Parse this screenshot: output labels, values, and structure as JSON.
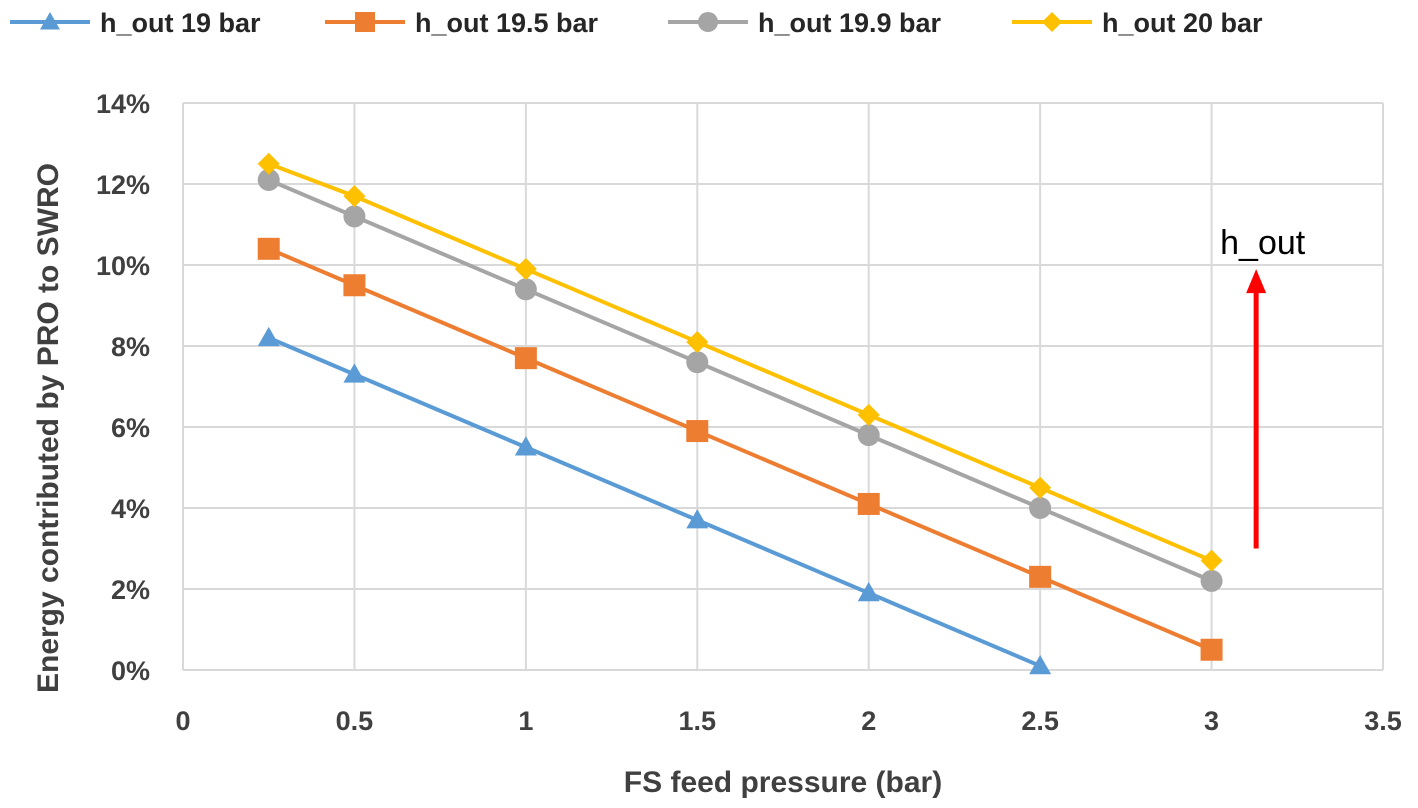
{
  "chart_data": {
    "type": "line",
    "title": "",
    "xlabel": "FS feed pressure (bar)",
    "ylabel": "Energy contributed by PRO to SWRO",
    "xlim": [
      0,
      3.5
    ],
    "ylim": [
      0,
      14
    ],
    "x_ticks": [
      "0",
      "0.5",
      "1",
      "1.5",
      "2",
      "2.5",
      "3",
      "3.5"
    ],
    "y_ticks": [
      "0%",
      "2%",
      "4%",
      "6%",
      "8%",
      "10%",
      "12%",
      "14%"
    ],
    "grid": true,
    "legend_position": "top",
    "series": [
      {
        "name": "h_out 19 bar",
        "color": "#5B9BD5",
        "marker": "triangle",
        "x": [
          0.25,
          0.5,
          1,
          1.5,
          2,
          2.5
        ],
        "y": [
          8.2,
          7.3,
          5.5,
          3.7,
          1.9,
          0.1
        ]
      },
      {
        "name": "h_out 19.5 bar",
        "color": "#ED7D31",
        "marker": "square",
        "x": [
          0.25,
          0.5,
          1,
          1.5,
          2,
          2.5,
          3
        ],
        "y": [
          10.4,
          9.5,
          7.7,
          5.9,
          4.1,
          2.3,
          0.5
        ]
      },
      {
        "name": "h_out 19.9 bar",
        "color": "#A5A5A5",
        "marker": "circle",
        "x": [
          0.25,
          0.5,
          1,
          1.5,
          2,
          2.5,
          3
        ],
        "y": [
          12.1,
          11.2,
          9.4,
          7.6,
          5.8,
          4.0,
          2.2
        ]
      },
      {
        "name": "h_out 20 bar",
        "color": "#FFC000",
        "marker": "diamond",
        "x": [
          0.25,
          0.5,
          1,
          1.5,
          2,
          2.5,
          3
        ],
        "y": [
          12.5,
          11.7,
          9.9,
          8.1,
          6.3,
          4.5,
          2.7
        ]
      }
    ],
    "annotation": {
      "text": "h_out",
      "arrow_color": "#FF0000",
      "arrow_direction": "up",
      "x": 3.13,
      "y_from": 3.0,
      "y_to": 9.8
    }
  }
}
